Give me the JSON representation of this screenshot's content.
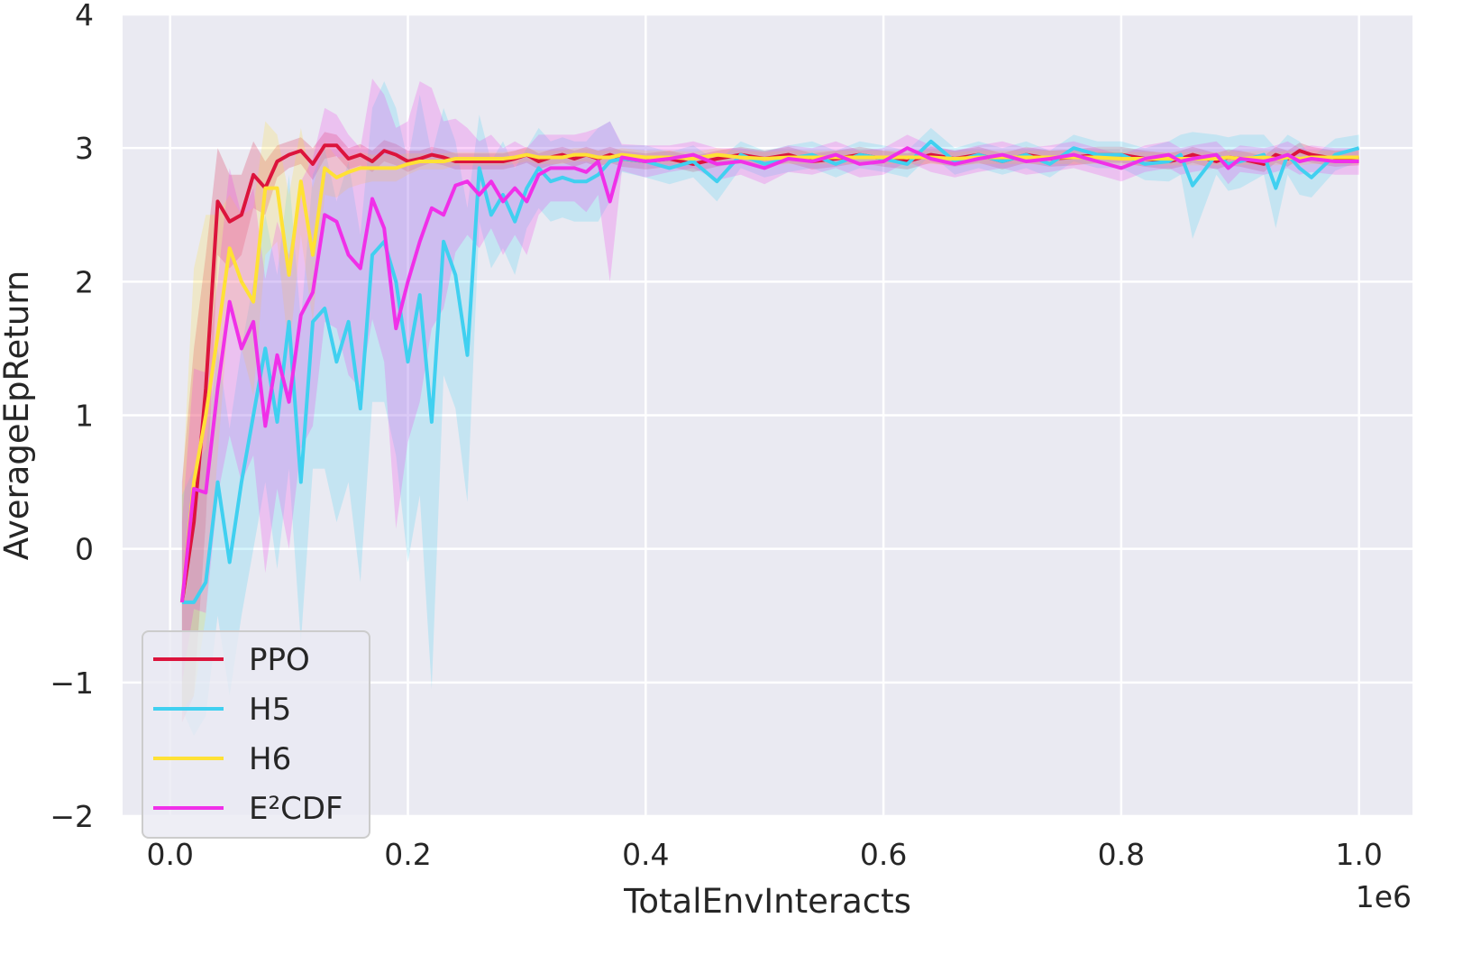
{
  "chart_data": {
    "type": "line",
    "xlabel": "TotalEnvInteracts",
    "ylabel": "AverageEpReturn",
    "x_offset_label": "1e6",
    "xlim": [
      -0.04,
      1.045
    ],
    "ylim": [
      -2,
      4
    ],
    "xticks": [
      0.0,
      0.2,
      0.4,
      0.6,
      0.8,
      1.0
    ],
    "xtick_labels": [
      "0.0",
      "0.2",
      "0.4",
      "0.6",
      "0.8",
      "1.0"
    ],
    "yticks": [
      -2,
      -1,
      0,
      1,
      2,
      3,
      4
    ],
    "ytick_labels": [
      "−2",
      "−1",
      "0",
      "1",
      "2",
      "3",
      "4"
    ],
    "grid": true,
    "background": "#EAEAF2",
    "legend_position": "lower-left",
    "band_opacity": 0.22,
    "x": [
      0.01,
      0.02,
      0.03,
      0.04,
      0.05,
      0.06,
      0.07,
      0.08,
      0.09,
      0.1,
      0.11,
      0.12,
      0.13,
      0.14,
      0.15,
      0.16,
      0.17,
      0.18,
      0.19,
      0.2,
      0.21,
      0.22,
      0.23,
      0.24,
      0.25,
      0.26,
      0.27,
      0.28,
      0.29,
      0.3,
      0.31,
      0.32,
      0.33,
      0.34,
      0.35,
      0.36,
      0.37,
      0.38,
      0.4,
      0.42,
      0.44,
      0.46,
      0.48,
      0.5,
      0.52,
      0.54,
      0.56,
      0.58,
      0.6,
      0.62,
      0.64,
      0.66,
      0.68,
      0.7,
      0.72,
      0.74,
      0.76,
      0.78,
      0.8,
      0.82,
      0.84,
      0.85,
      0.86,
      0.88,
      0.89,
      0.9,
      0.92,
      0.93,
      0.94,
      0.95,
      0.96,
      0.98,
      1.0
    ],
    "series": [
      {
        "name": "PPO",
        "color": "#DC143C",
        "values": [
          -0.4,
          0.2,
          1.2,
          2.6,
          2.45,
          2.5,
          2.8,
          2.7,
          2.9,
          2.95,
          2.98,
          2.88,
          3.02,
          3.02,
          2.92,
          2.95,
          2.9,
          2.98,
          2.95,
          2.9,
          2.92,
          2.95,
          2.93,
          2.9,
          2.9,
          2.9,
          2.9,
          2.9,
          2.92,
          2.95,
          2.9,
          2.93,
          2.95,
          2.92,
          2.95,
          2.92,
          2.95,
          2.92,
          2.9,
          2.92,
          2.88,
          2.92,
          2.95,
          2.92,
          2.95,
          2.9,
          2.92,
          2.95,
          2.92,
          2.9,
          2.95,
          2.92,
          2.95,
          2.9,
          2.95,
          2.92,
          2.93,
          2.95,
          2.95,
          2.92,
          2.9,
          2.92,
          2.95,
          2.9,
          2.93,
          2.92,
          2.88,
          2.95,
          2.92,
          2.98,
          2.95,
          2.92,
          2.93
        ],
        "spread": [
          0.9,
          1.3,
          1.0,
          0.4,
          0.35,
          0.3,
          0.25,
          0.2,
          0.12,
          0.1,
          0.1,
          0.12,
          0.1,
          0.08,
          0.08,
          0.08,
          0.08,
          0.08,
          0.08,
          0.08,
          0.06,
          0.06,
          0.06,
          0.06,
          0.06,
          0.06,
          0.06,
          0.06,
          0.06,
          0.06,
          0.06,
          0.06,
          0.06,
          0.06,
          0.06,
          0.06,
          0.06,
          0.06,
          0.06,
          0.06,
          0.06,
          0.06,
          0.06,
          0.06,
          0.06,
          0.06,
          0.06,
          0.06,
          0.06,
          0.06,
          0.06,
          0.06,
          0.06,
          0.06,
          0.06,
          0.06,
          0.06,
          0.06,
          0.06,
          0.06,
          0.06,
          0.06,
          0.06,
          0.06,
          0.06,
          0.06,
          0.06,
          0.06,
          0.06,
          0.06,
          0.06,
          0.06,
          0.06
        ]
      },
      {
        "name": "H5",
        "color": "#40D0F0",
        "values": [
          -0.4,
          -0.4,
          -0.25,
          0.5,
          -0.1,
          0.5,
          1.0,
          1.5,
          0.95,
          1.7,
          0.5,
          1.7,
          1.8,
          1.4,
          1.7,
          1.05,
          2.2,
          2.3,
          2.0,
          1.4,
          1.9,
          0.95,
          2.3,
          2.05,
          1.45,
          2.85,
          2.5,
          2.65,
          2.45,
          2.7,
          2.85,
          2.75,
          2.78,
          2.75,
          2.75,
          2.8,
          2.9,
          2.92,
          2.9,
          2.85,
          2.9,
          2.75,
          2.95,
          2.88,
          2.92,
          2.95,
          2.88,
          2.95,
          2.92,
          2.88,
          3.05,
          2.9,
          2.95,
          2.9,
          2.95,
          2.88,
          3.0,
          2.95,
          2.95,
          2.88,
          2.9,
          2.95,
          2.72,
          2.95,
          2.88,
          2.9,
          2.95,
          2.7,
          2.95,
          2.85,
          2.78,
          2.95,
          3.0
        ],
        "spread": [
          0.8,
          1.0,
          1.0,
          1.0,
          1.0,
          1.0,
          1.0,
          1.0,
          1.1,
          1.1,
          1.2,
          1.1,
          1.2,
          1.2,
          1.2,
          1.3,
          1.1,
          1.2,
          1.3,
          1.5,
          1.5,
          2.0,
          1.0,
          1.0,
          1.1,
          0.4,
          0.4,
          0.4,
          0.4,
          0.3,
          0.3,
          0.3,
          0.3,
          0.3,
          0.3,
          0.35,
          0.3,
          0.1,
          0.12,
          0.12,
          0.12,
          0.15,
          0.1,
          0.1,
          0.1,
          0.1,
          0.1,
          0.1,
          0.1,
          0.1,
          0.1,
          0.1,
          0.1,
          0.1,
          0.1,
          0.1,
          0.1,
          0.1,
          0.1,
          0.12,
          0.15,
          0.15,
          0.4,
          0.15,
          0.2,
          0.2,
          0.15,
          0.3,
          0.15,
          0.2,
          0.15,
          0.12,
          0.1
        ]
      },
      {
        "name": "H6",
        "color": "#FFE135",
        "values": [
          -0.4,
          0.5,
          1.0,
          1.6,
          2.25,
          2.0,
          1.85,
          2.7,
          2.7,
          2.05,
          2.75,
          2.2,
          2.85,
          2.78,
          2.82,
          2.85,
          2.85,
          2.85,
          2.85,
          2.88,
          2.9,
          2.9,
          2.9,
          2.92,
          2.92,
          2.92,
          2.92,
          2.92,
          2.93,
          2.95,
          2.93,
          2.93,
          2.93,
          2.95,
          2.95,
          2.93,
          2.93,
          2.95,
          2.93,
          2.93,
          2.92,
          2.95,
          2.93,
          2.92,
          2.93,
          2.93,
          2.93,
          2.93,
          2.93,
          2.93,
          2.93,
          2.92,
          2.93,
          2.93,
          2.93,
          2.93,
          2.93,
          2.93,
          2.92,
          2.92,
          2.92,
          2.92,
          2.92,
          2.92,
          2.93,
          2.92,
          2.93,
          2.92,
          2.93,
          2.92,
          2.93,
          2.93,
          2.93
        ],
        "spread": [
          0.8,
          1.6,
          1.5,
          0.9,
          0.4,
          0.5,
          0.7,
          0.5,
          0.4,
          0.6,
          0.4,
          0.5,
          0.2,
          0.15,
          0.12,
          0.12,
          0.1,
          0.1,
          0.1,
          0.08,
          0.06,
          0.06,
          0.06,
          0.05,
          0.05,
          0.05,
          0.05,
          0.05,
          0.05,
          0.05,
          0.05,
          0.05,
          0.05,
          0.05,
          0.05,
          0.05,
          0.05,
          0.05,
          0.05,
          0.05,
          0.05,
          0.05,
          0.05,
          0.05,
          0.05,
          0.05,
          0.05,
          0.05,
          0.05,
          0.05,
          0.05,
          0.05,
          0.05,
          0.05,
          0.05,
          0.05,
          0.05,
          0.05,
          0.05,
          0.05,
          0.05,
          0.05,
          0.05,
          0.05,
          0.05,
          0.05,
          0.05,
          0.05,
          0.05,
          0.05,
          0.05,
          0.05,
          0.05
        ]
      },
      {
        "name": "E²CDF",
        "color": "#F030E8",
        "values": [
          -0.4,
          0.45,
          0.42,
          1.2,
          1.85,
          1.5,
          1.7,
          0.92,
          1.45,
          1.1,
          1.75,
          1.92,
          2.5,
          2.45,
          2.2,
          2.1,
          2.62,
          2.4,
          1.65,
          2.0,
          2.3,
          2.55,
          2.5,
          2.72,
          2.75,
          2.65,
          2.75,
          2.6,
          2.7,
          2.6,
          2.8,
          2.85,
          2.85,
          2.85,
          2.82,
          2.9,
          2.6,
          2.93,
          2.9,
          2.92,
          2.95,
          2.88,
          2.9,
          2.85,
          2.92,
          2.9,
          2.95,
          2.88,
          2.9,
          3.0,
          2.92,
          2.88,
          2.92,
          2.95,
          2.9,
          2.92,
          2.95,
          2.9,
          2.85,
          2.92,
          2.95,
          2.9,
          2.92,
          2.95,
          2.85,
          2.92,
          2.9,
          2.92,
          2.95,
          2.9,
          2.92,
          2.9,
          2.9
        ],
        "spread": [
          0.6,
          0.9,
          0.9,
          0.8,
          1.0,
          1.0,
          1.0,
          1.1,
          1.0,
          1.1,
          1.0,
          1.0,
          0.8,
          0.8,
          0.9,
          0.9,
          0.9,
          1.0,
          1.5,
          1.2,
          1.2,
          0.9,
          0.7,
          0.5,
          0.4,
          0.4,
          0.35,
          0.4,
          0.35,
          0.4,
          0.3,
          0.25,
          0.25,
          0.25,
          0.3,
          0.25,
          0.6,
          0.1,
          0.12,
          0.1,
          0.1,
          0.12,
          0.1,
          0.12,
          0.1,
          0.1,
          0.1,
          0.1,
          0.1,
          0.1,
          0.1,
          0.1,
          0.1,
          0.1,
          0.1,
          0.1,
          0.1,
          0.1,
          0.1,
          0.1,
          0.1,
          0.1,
          0.1,
          0.1,
          0.12,
          0.1,
          0.1,
          0.1,
          0.1,
          0.1,
          0.1,
          0.1,
          0.1
        ]
      }
    ]
  }
}
